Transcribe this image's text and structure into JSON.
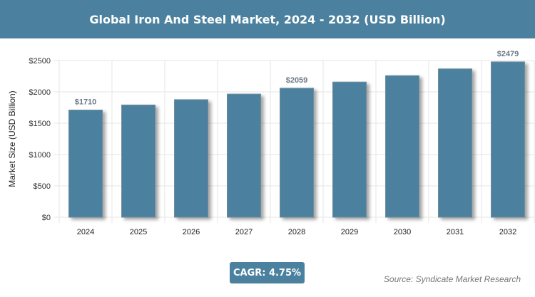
{
  "title": "Global Iron And Steel Market, 2024 - 2032 (USD Billion)",
  "chart_data": {
    "type": "bar",
    "title": "Global Iron And Steel Market, 2024 - 2032 (USD Billion)",
    "categories": [
      "2024",
      "2025",
      "2026",
      "2027",
      "2028",
      "2029",
      "2030",
      "2031",
      "2032"
    ],
    "values": [
      1710,
      1791,
      1876,
      1965,
      2059,
      2157,
      2259,
      2367,
      2479
    ],
    "data_labels": {
      "0": "$1710",
      "4": "$2059",
      "8": "$2479"
    },
    "ylabel": "Market Size (USD Billion)",
    "xlabel": "",
    "ylim": [
      0,
      2500
    ],
    "yticks": [
      0,
      500,
      1000,
      1500,
      2000,
      2500
    ],
    "ytick_labels": [
      "$0",
      "$500",
      "$1000",
      "$1500",
      "$2000",
      "$2500"
    ],
    "grid": true,
    "bar_color": "#4b819e"
  },
  "cagr": "CAGR: 4.75%",
  "source": "Source: Syndicate Market Research"
}
